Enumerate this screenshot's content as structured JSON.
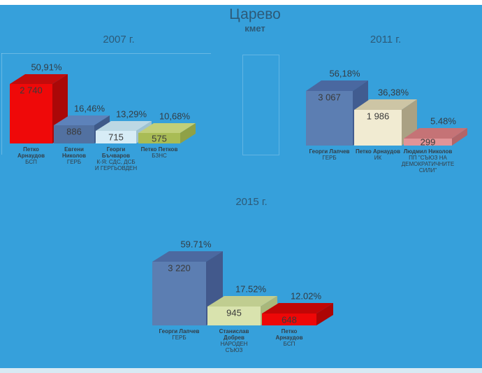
{
  "page": {
    "title": "Царево",
    "subtitle": "кмет"
  },
  "colors": {
    "background": "#36a0db",
    "top_strip": "#ffffff",
    "bottom_strip": "#d8eaf4",
    "title_text": "#2d5a78",
    "label_text": "#333e47",
    "value_text": "#3a3a3a"
  },
  "chart_data": [
    {
      "type": "bar",
      "title": "2007 г.",
      "legend": "none",
      "grid": false,
      "bars": [
        {
          "name": "Петко Арнаудов",
          "party": "БСП",
          "votes": 2740,
          "votes_label": "2 740",
          "percent": 50.91,
          "percent_label": "50,91%",
          "colors": {
            "front": "#ef0909",
            "top": "#c30b0b",
            "side": "#aa0808"
          }
        },
        {
          "name": "Евгени Николов",
          "party": "ГЕРБ",
          "votes": 886,
          "votes_label": "886",
          "percent": 16.46,
          "percent_label": "16,46%",
          "colors": {
            "front": "#5271a1",
            "top": "#5d82ba",
            "side": "#3f5a89"
          }
        },
        {
          "name": "Георги Бъчваров",
          "party": "К-Я: СДС, ДСБ И ГЕРГЬОВДЕН",
          "votes": 715,
          "votes_label": "715",
          "percent": 13.29,
          "percent_label": "13,29%",
          "colors": {
            "front": "#d7ecf6",
            "top": "#bcd8e4",
            "side": "#9fc2d1"
          }
        },
        {
          "name": "Петко Петков",
          "party": "БЗНС",
          "votes": 575,
          "votes_label": "575",
          "percent": 10.68,
          "percent_label": "10,68%",
          "colors": {
            "front": "#a9bc55",
            "top": "#c1cf79",
            "side": "#8fa146"
          }
        }
      ]
    },
    {
      "type": "bar",
      "title": "2011 г.",
      "legend": "none",
      "grid": false,
      "bars": [
        {
          "name": "Георги Лапчев",
          "party": "ГЕРБ",
          "votes": 3067,
          "votes_label": "3 067",
          "percent": 56.18,
          "percent_label": "56,18%",
          "colors": {
            "front": "#5c7eb2",
            "top": "#4a68a0",
            "side": "#415c90"
          }
        },
        {
          "name": "Петко Арнаудов",
          "party": "ИК",
          "votes": 1986,
          "votes_label": "1 986",
          "percent": 36.38,
          "percent_label": "36,38%",
          "colors": {
            "front": "#f1ebd2",
            "top": "#cdc5a5",
            "side": "#aaa183"
          }
        },
        {
          "name": "Людмил Николов",
          "party": "ПП \"СЪЮЗ НА ДЕМОКРАТИЧНИТЕ СИЛИ\"",
          "votes": 299,
          "votes_label": "299",
          "percent": 5.48,
          "percent_label": "5.48%",
          "colors": {
            "front": "#e29497",
            "top": "#c57376",
            "side": "#b26568"
          }
        }
      ]
    },
    {
      "type": "bar",
      "title": "2015 г.",
      "legend": "none",
      "grid": false,
      "bars": [
        {
          "name": "Георги Лапчев",
          "party": "ГЕРБ",
          "votes": 3220,
          "votes_label": "3 220",
          "percent": 59.71,
          "percent_label": "59.71%",
          "colors": {
            "front": "#5c7eb2",
            "top": "#4c69a0",
            "side": "#42598c"
          }
        },
        {
          "name": "Станислав Добрев",
          "party": "НАРОДЕН СЪЮЗ",
          "votes": 945,
          "votes_label": "945",
          "percent": 17.52,
          "percent_label": "17.52%",
          "colors": {
            "front": "#d9e3ae",
            "top": "#c0cd90",
            "side": "#a9b77b"
          }
        },
        {
          "name": "Петко Арнаудов",
          "party": "БСП",
          "votes": 648,
          "votes_label": "648",
          "percent": 12.02,
          "percent_label": "12.02%",
          "colors": {
            "front": "#ee0707",
            "top": "#c10606",
            "side": "#ad0505"
          }
        }
      ]
    }
  ]
}
